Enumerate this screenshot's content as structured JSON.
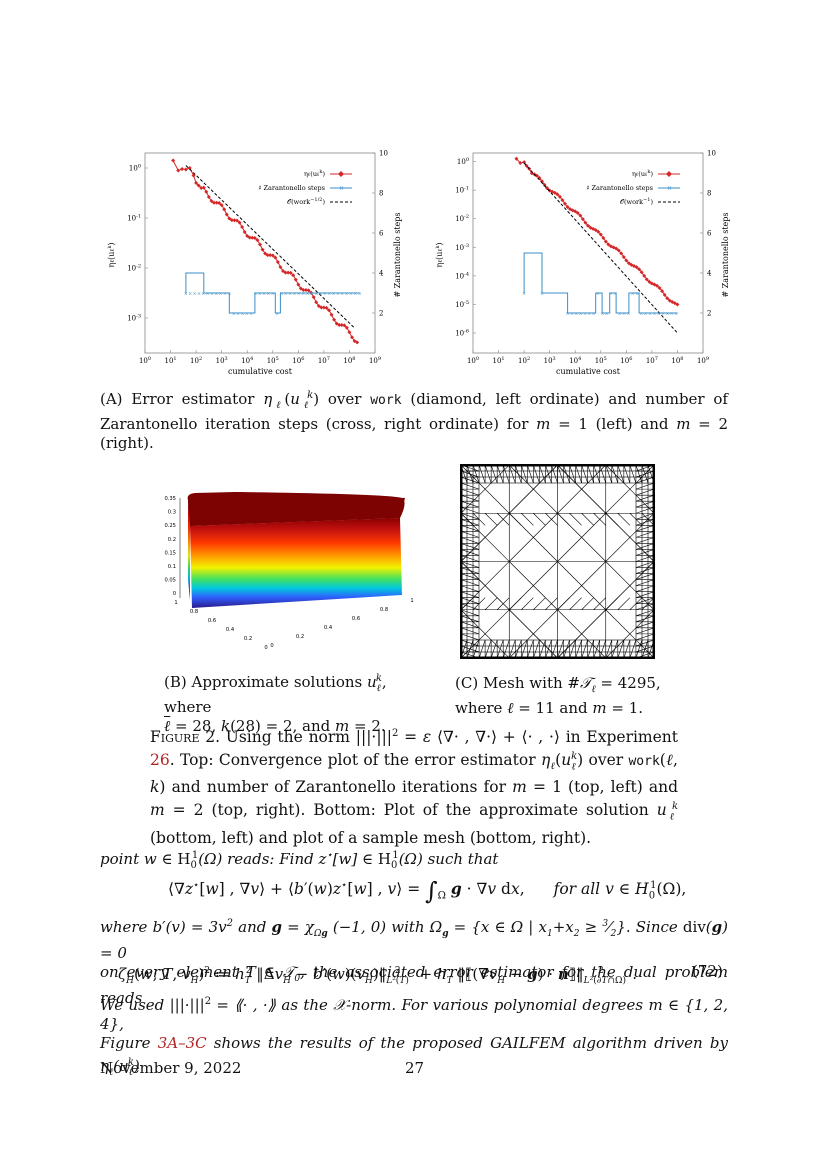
{
  "figA": {
    "left_plot": {
      "y_left_ticks": [
        "10^0",
        "10^-1",
        "10^-2",
        "10^-3"
      ],
      "y_right_ticks": [
        "10",
        "8",
        "6",
        "4",
        "2"
      ],
      "x_ticks": [
        "10^0",
        "10^1",
        "10^2",
        "10^3",
        "10^4",
        "10^5",
        "10^6",
        "10^7",
        "10^8",
        "10^9"
      ],
      "x_label": "cumulative cost",
      "y_left_label": "ηℓ(uℓk)",
      "y_right_label": "# Zarantonello steps",
      "legend": [
        "ηℓ(uℓk)",
        "# Zarantonello steps",
        "O(work^−1/2)"
      ]
    },
    "right_plot": {
      "y_left_ticks": [
        "10^0",
        "10^-1",
        "10^-2",
        "10^-3",
        "10^-4",
        "10^-5",
        "10^-6"
      ],
      "y_right_ticks": [
        "10",
        "8",
        "6",
        "4",
        "2"
      ],
      "x_ticks": [
        "10^0",
        "10^1",
        "10^2",
        "10^3",
        "10^4",
        "10^5",
        "10^6",
        "10^7",
        "10^8",
        "10^9"
      ],
      "x_label": "cumulative cost",
      "y_left_label": "ηℓ(uℓk)",
      "y_right_label": "# Zarantonello steps",
      "legend": [
        "ηℓ(uℓk)",
        "# Zarantonello steps",
        "O(work^−1)"
      ]
    },
    "caption": "(A) Error estimator ηℓ(uℓk) over work (diamond, left ordinate) and number of Zarantonello iteration steps (cross, right ordinate) for m = 1 (left) and m = 2 (right)."
  },
  "figB": {
    "z_ticks": [
      "0.35",
      "0.3",
      "0.25",
      "0.2",
      "0.15",
      "0.1",
      "0.05",
      "0"
    ],
    "x_ticks": [
      "0",
      "0.2",
      "0.4",
      "0.6",
      "0.8",
      "1"
    ],
    "y_ticks": [
      "1",
      "0.8",
      "0.6",
      "0.4",
      "0.2",
      "0"
    ],
    "caption": "(B) Approximate solutions uℓk, where ℓ = 28, k(28) = 2, and m = 2."
  },
  "figC": {
    "caption": "(C) Mesh with #Tℓ = 4295, where ℓ = 11 and m = 1."
  },
  "figure2": {
    "label": "Figure 2.",
    "text": "Using the norm |||·|||² = ε ⟨∇· , ∇·⟩ + ⟨· , ·⟩ in Experiment 26. Top: Convergence plot of the error estimator ηℓ(uℓk) over work(ℓ, k) and number of Zarantonello iterations for m = 1 (top, left) and m = 2 (top, right). Bottom: Plot of the approximate solution uℓk (bottom, left) and plot of a sample mesh (bottom, right)."
  },
  "body": {
    "line1": "point w ∈ H¹₀(Ω) reads: Find z*[w] ∈ H¹₀(Ω) such that",
    "eq1": "⟨∇z*[w] , ∇v⟩ + ⟨b′(w)z*[w] , v⟩ = ∫Ω g · ∇v dx,     for all v ∈ H¹₀(Ω),",
    "line2": "where b′(v) = 3v² and g = χΩg (−1, 0) with Ωg = {x ∈ Ω | x₁ + x₂ ≥ 3/2}. Since div(g) = 0",
    "line3": "on every element T ∈ T₀, the associated error estimator for the dual problem reads",
    "eq2": "ζH(w; T, vH)² := h²T ‖ΔvH − b′(w)(vH)‖²L²(T) + hT ‖⟦(∇vH − g) · n⟧‖²L²(∂T∩Ω).",
    "eq2_num": "(72)",
    "line4": "We used |||·|||² = ⟪· , ·⟫ as the X-norm. For various polynomial degrees m ∈ {1, 2, 4},",
    "line5": "Figure 3A–3C shows the results of the proposed GAILFEM algorithm driven by ηℓ(uℓk)"
  },
  "footer": {
    "date": "November 9, 2022",
    "page": "27"
  },
  "colors": {
    "estimator": "#d62728",
    "zarantonello": "#3b8ec9",
    "link": "#b22222"
  }
}
